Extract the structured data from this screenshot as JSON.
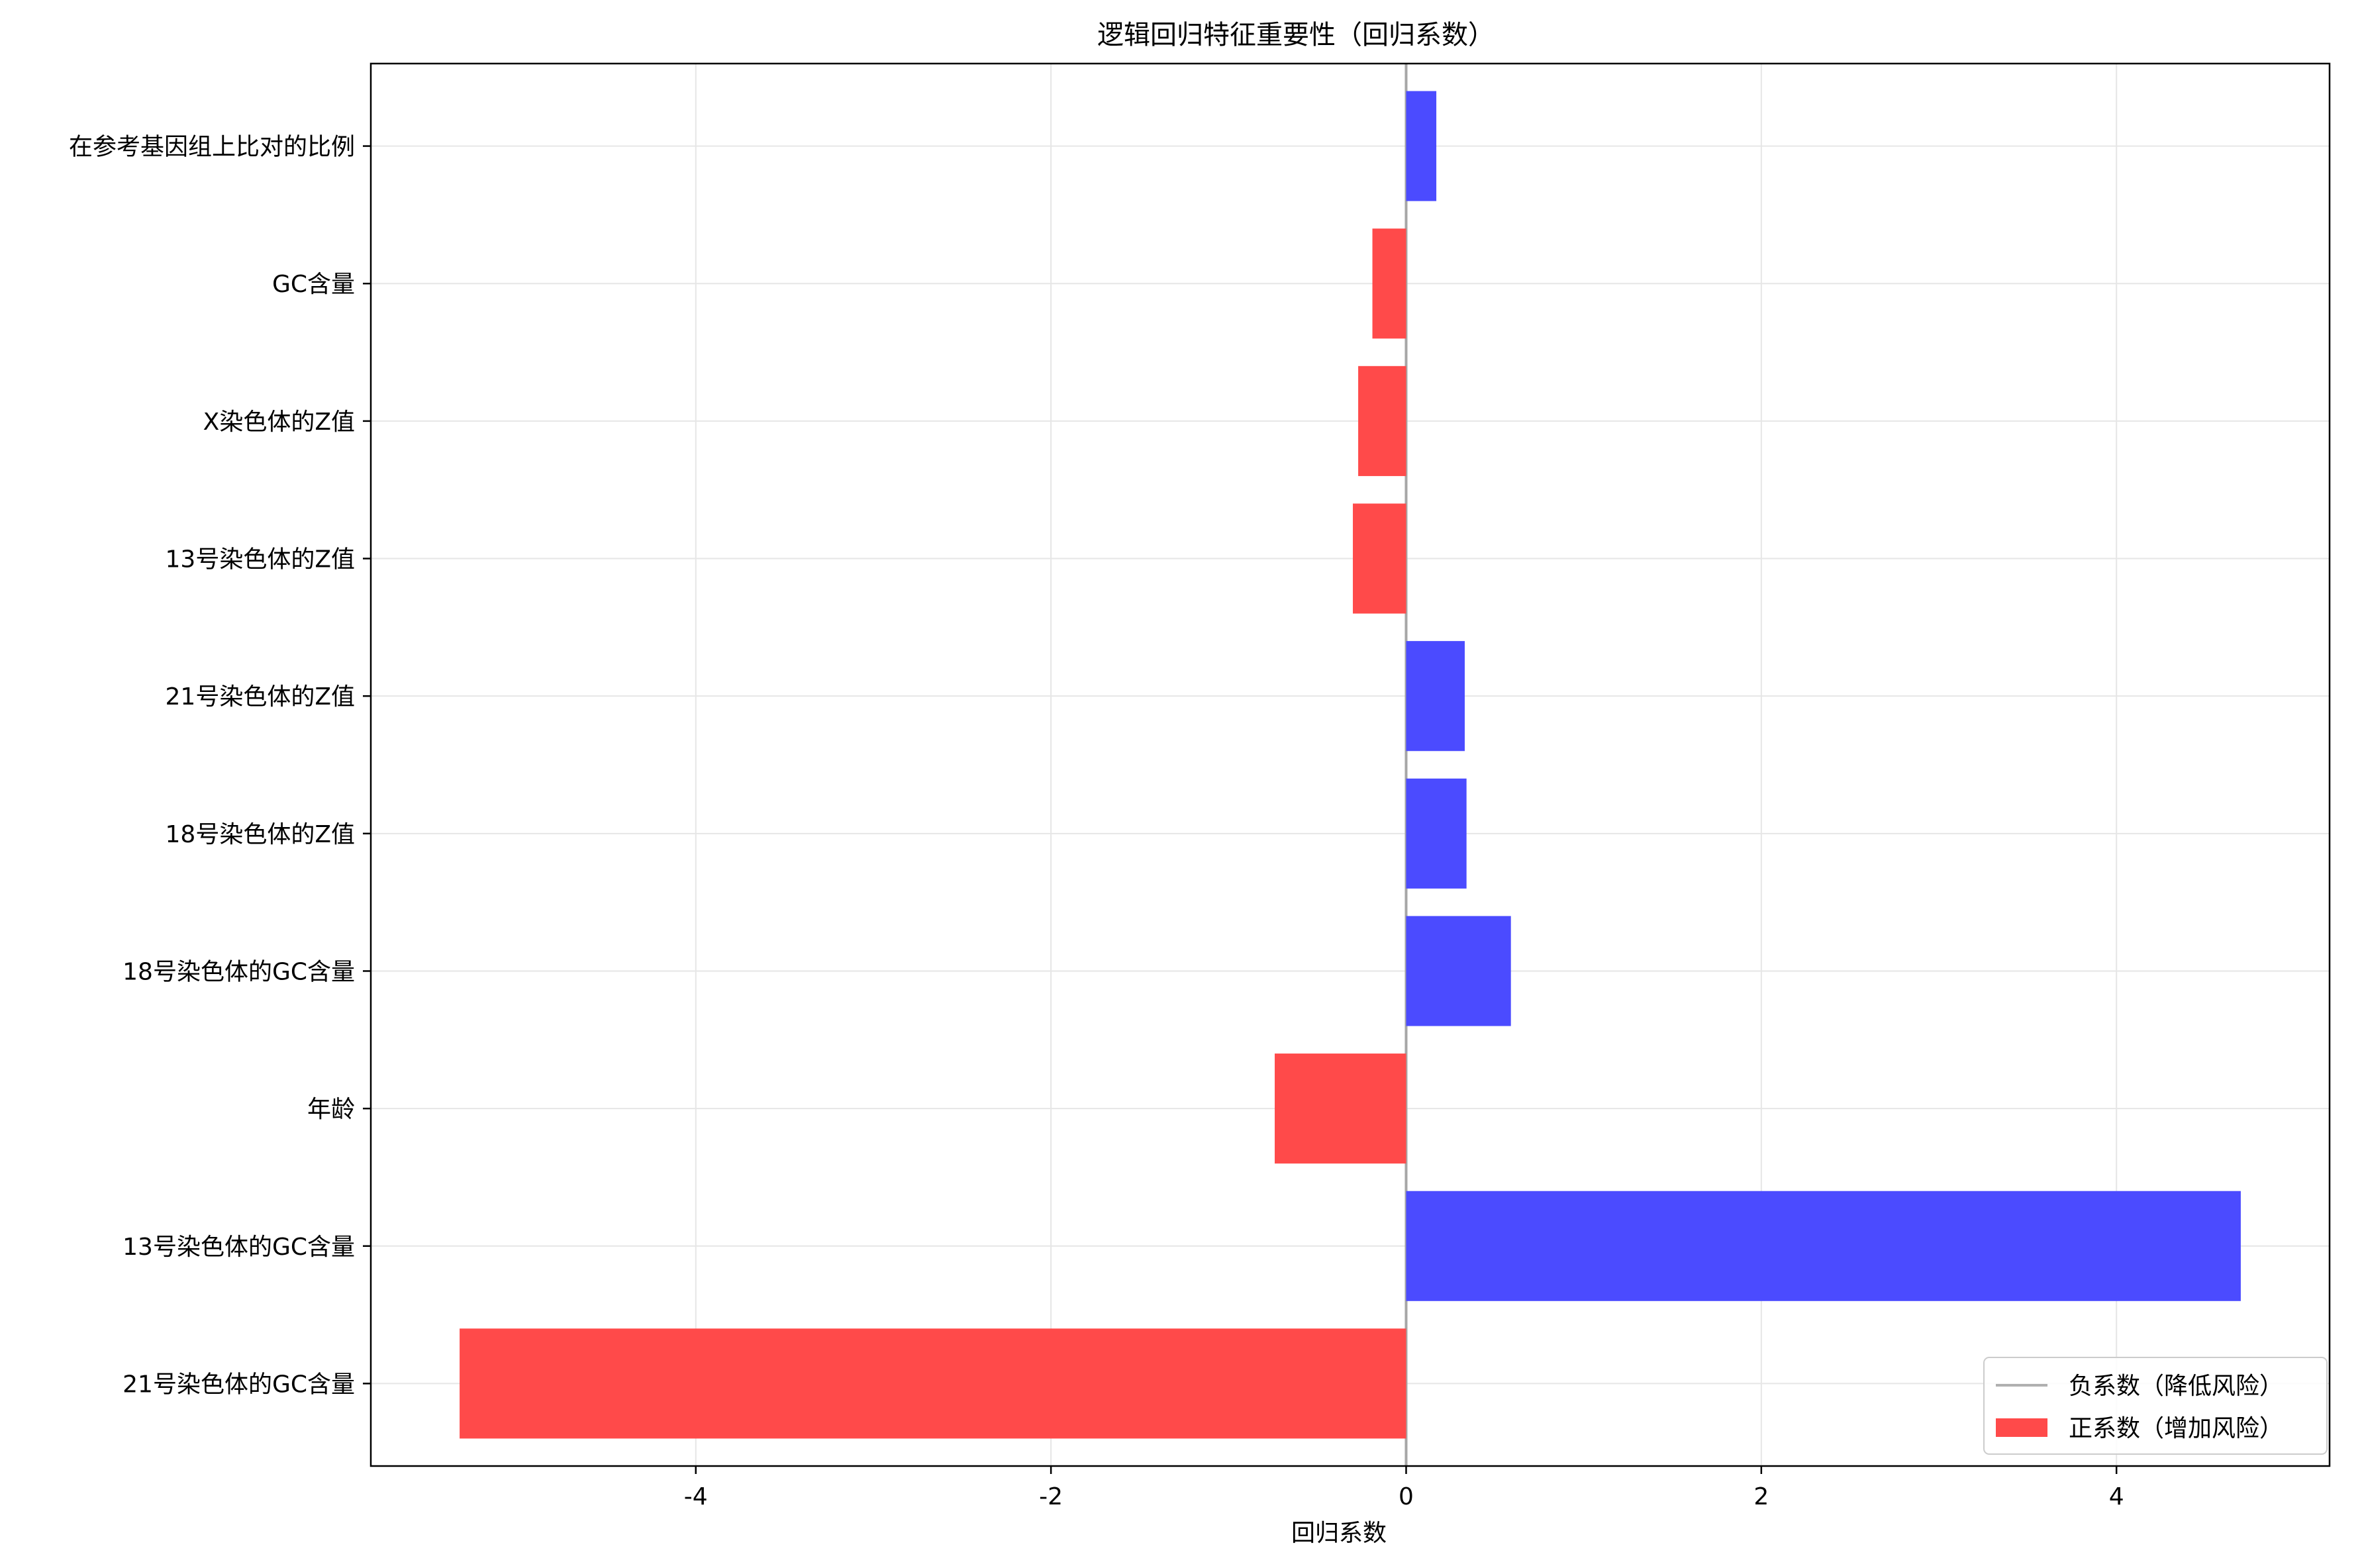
{
  "chart_data": {
    "type": "bar",
    "orientation": "horizontal",
    "title": "逻辑回归特征重要性（回归系数）",
    "xlabel": "回归系数",
    "ylabel": "",
    "categories": [
      "在参考基因组上比对的比例",
      "GC含量",
      "X染色体的Z值",
      "13号染色体的Z值",
      "21号染色体的Z值",
      "18号染色体的Z值",
      "18号染色体的GC含量",
      "年龄",
      "13号染色体的GC含量",
      "21号染色体的GC含量"
    ],
    "values": [
      0.17,
      -0.19,
      -0.27,
      -0.3,
      0.33,
      0.34,
      0.59,
      -0.74,
      4.7,
      -5.33
    ],
    "xlim": [
      -5.83,
      5.2
    ],
    "xticks": [
      -4,
      -2,
      0,
      2,
      4
    ],
    "xtick_labels": [
      "-4",
      "-2",
      "0",
      "2",
      "4"
    ],
    "grid": true,
    "legend": {
      "position": "bottom-right",
      "entries": [
        {
          "label": "负系数（降低风险）",
          "marker": "line",
          "color": "#b0b0b0"
        },
        {
          "label": "正系数（增加风险）",
          "marker": "patch",
          "color": "#ff4a4a"
        }
      ]
    },
    "colors": {
      "positive_bar": "#4b4bff",
      "negative_bar": "#ff4a4a",
      "zero_line": "#a6a6a6",
      "grid": "#e6e6e6"
    }
  }
}
